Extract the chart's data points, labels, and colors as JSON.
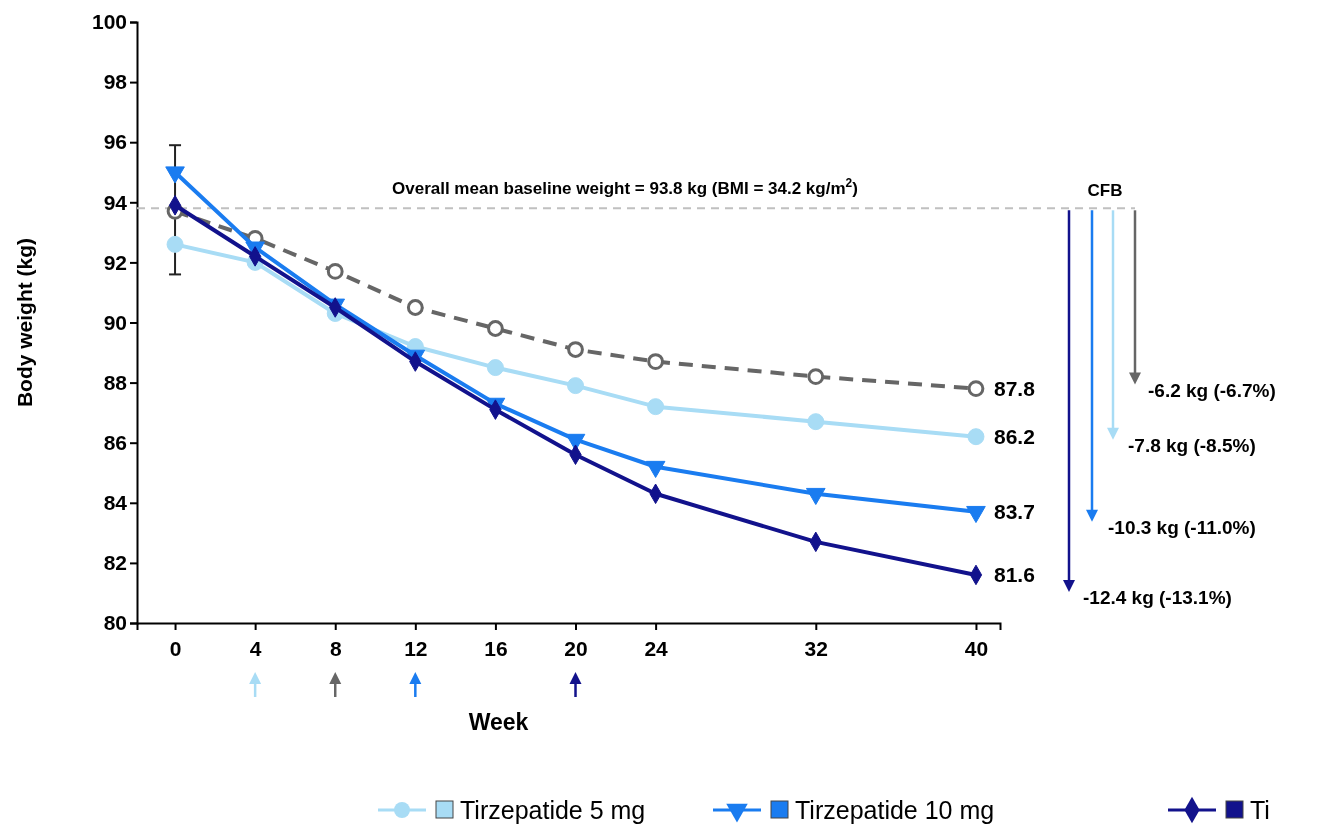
{
  "chart_data": {
    "type": "line",
    "xlabel": "Week",
    "ylabel": "Body weight (kg)",
    "x": [
      0,
      4,
      8,
      12,
      16,
      20,
      24,
      32,
      40
    ],
    "xlim": [
      -1.9,
      41.2
    ],
    "xticks": [
      0,
      4,
      8,
      12,
      16,
      20,
      24,
      32,
      40
    ],
    "ylim": [
      80,
      100
    ],
    "yticks": [
      80,
      82,
      84,
      86,
      88,
      90,
      92,
      94,
      96,
      98,
      100
    ],
    "grid": false,
    "legend": "bottom",
    "series": [
      {
        "name": "Tirzepatide 5 mg",
        "color": "#a8dcf5",
        "marker": "circle",
        "line_style": "solid",
        "values": [
          92.6,
          92.0,
          90.3,
          89.2,
          88.5,
          87.9,
          87.2,
          86.7,
          86.2
        ],
        "value_labels": [
          null,
          null,
          null,
          null,
          null,
          null,
          null,
          null,
          "86.2"
        ]
      },
      {
        "name": "Tirzepatide 10 mg",
        "color": "#1a7cf0",
        "marker": "triangle",
        "line_style": "solid",
        "values": [
          95.0,
          92.5,
          90.6,
          88.9,
          87.3,
          86.1,
          85.2,
          84.3,
          83.7
        ],
        "value_labels": [
          null,
          null,
          null,
          null,
          null,
          null,
          null,
          null,
          "83.7"
        ]
      },
      {
        "name": "Ti",
        "color": "#12128c",
        "marker": "diamond",
        "line_style": "solid",
        "values": [
          93.9,
          92.2,
          90.5,
          88.7,
          87.1,
          85.6,
          84.3,
          82.7,
          81.6
        ],
        "value_labels": [
          null,
          null,
          null,
          null,
          null,
          null,
          null,
          null,
          "81.6"
        ]
      },
      {
        "color": "#666666",
        "marker": "circle",
        "line_style": "dashed",
        "values": [
          93.7,
          92.8,
          91.7,
          90.5,
          89.8,
          89.1,
          88.7,
          88.2,
          87.8
        ],
        "value_labels": [
          null,
          null,
          null,
          null,
          null,
          null,
          null,
          null,
          "87.8"
        ],
        "errors": [
          [
            91.6,
            95.9
          ],
          null,
          null,
          null,
          null,
          null,
          null,
          null,
          null
        ]
      }
    ],
    "ref_lines": [
      {
        "axis": "y",
        "value": 93.8,
        "label": "Overall mean baseline weight = 93.8 kg (BMI = 34.2 kg/m$^{2}$)",
        "color": "#c0c0c0",
        "line_style": "dashed"
      }
    ],
    "annotations": [
      "CFB",
      "-6.2 kg (-6.7%)",
      "-7.8 kg (-8.5%)",
      "-10.3 kg (-11.0%)",
      "-12.4 kg (-13.1%)"
    ]
  }
}
